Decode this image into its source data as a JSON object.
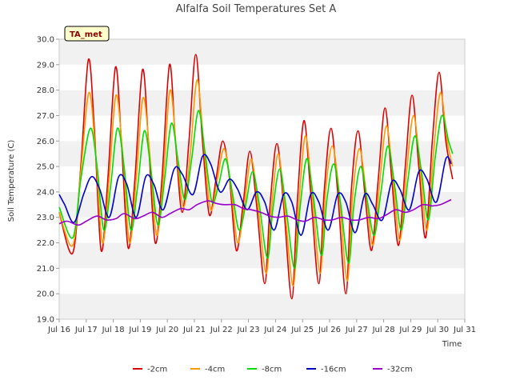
{
  "chart_data": {
    "type": "line",
    "title": "Alfalfa Soil Temperatures Set A",
    "xlabel": "Time",
    "ylabel": "Soil Temperature (C)",
    "ylim": [
      19.0,
      30.0
    ],
    "yticks": [
      "19.0",
      "20.0",
      "21.0",
      "22.0",
      "23.0",
      "24.0",
      "25.0",
      "26.0",
      "27.0",
      "28.0",
      "29.0",
      "30.0"
    ],
    "xlim": [
      16,
      31
    ],
    "xticks": [
      {
        "day": 16,
        "label": "Jul 16"
      },
      {
        "day": 17,
        "label": "Jul 17"
      },
      {
        "day": 18,
        "label": "Jul 18"
      },
      {
        "day": 19,
        "label": "Jul 19"
      },
      {
        "day": 20,
        "label": "Jul 20"
      },
      {
        "day": 21,
        "label": "Jul 21"
      },
      {
        "day": 22,
        "label": "Jul 22"
      },
      {
        "day": 23,
        "label": "Jul 23"
      },
      {
        "day": 24,
        "label": "Jul 24"
      },
      {
        "day": 25,
        "label": "Jul 25"
      },
      {
        "day": 26,
        "label": "Jul 26"
      },
      {
        "day": 27,
        "label": "Jul 27"
      },
      {
        "day": 28,
        "label": "Jul 28"
      },
      {
        "day": 29,
        "label": "Jul 29"
      },
      {
        "day": 30,
        "label": "Jul 30"
      },
      {
        "day": 31,
        "label": "Jul 31"
      }
    ],
    "grid": "horizontal-bands",
    "legend_position": "bottom",
    "badge": "TA_met",
    "series": [
      {
        "name": "-2cm",
        "color": "#dd0000",
        "points": [
          [
            16.0,
            23.2
          ],
          [
            16.5,
            21.6
          ],
          [
            16.8,
            25.0
          ],
          [
            17.08,
            29.2
          ],
          [
            17.3,
            26.5
          ],
          [
            17.55,
            21.7
          ],
          [
            17.8,
            24.5
          ],
          [
            18.08,
            28.9
          ],
          [
            18.3,
            26.0
          ],
          [
            18.55,
            21.8
          ],
          [
            18.8,
            24.5
          ],
          [
            19.08,
            28.8
          ],
          [
            19.3,
            26.0
          ],
          [
            19.55,
            22.0
          ],
          [
            19.8,
            24.5
          ],
          [
            20.08,
            29.0
          ],
          [
            20.3,
            26.0
          ],
          [
            20.55,
            23.2
          ],
          [
            20.8,
            26.0
          ],
          [
            21.05,
            29.4
          ],
          [
            21.3,
            26.0
          ],
          [
            21.55,
            23.1
          ],
          [
            21.8,
            24.5
          ],
          [
            22.05,
            26.0
          ],
          [
            22.3,
            24.5
          ],
          [
            22.55,
            21.7
          ],
          [
            22.8,
            23.5
          ],
          [
            23.05,
            25.6
          ],
          [
            23.3,
            23.5
          ],
          [
            23.6,
            20.4
          ],
          [
            23.8,
            23.5
          ],
          [
            24.05,
            25.9
          ],
          [
            24.3,
            23.5
          ],
          [
            24.6,
            19.8
          ],
          [
            24.8,
            23.5
          ],
          [
            25.05,
            26.8
          ],
          [
            25.3,
            24.0
          ],
          [
            25.6,
            20.4
          ],
          [
            25.8,
            24.0
          ],
          [
            26.05,
            26.5
          ],
          [
            26.3,
            24.0
          ],
          [
            26.6,
            20.0
          ],
          [
            26.8,
            24.0
          ],
          [
            27.05,
            26.4
          ],
          [
            27.3,
            24.0
          ],
          [
            27.55,
            21.7
          ],
          [
            27.8,
            24.5
          ],
          [
            28.05,
            27.3
          ],
          [
            28.3,
            24.5
          ],
          [
            28.55,
            21.9
          ],
          [
            28.8,
            25.0
          ],
          [
            29.05,
            27.8
          ],
          [
            29.3,
            25.0
          ],
          [
            29.55,
            22.2
          ],
          [
            29.8,
            26.0
          ],
          [
            30.05,
            28.7
          ],
          [
            30.3,
            26.0
          ],
          [
            30.55,
            24.5
          ]
        ]
      },
      {
        "name": "-4cm",
        "color": "#ff9900",
        "points": [
          [
            16.0,
            23.2
          ],
          [
            16.5,
            21.9
          ],
          [
            16.8,
            24.8
          ],
          [
            17.1,
            27.9
          ],
          [
            17.35,
            25.5
          ],
          [
            17.6,
            22.0
          ],
          [
            17.85,
            24.5
          ],
          [
            18.1,
            27.8
          ],
          [
            18.35,
            25.5
          ],
          [
            18.6,
            22.0
          ],
          [
            18.85,
            24.5
          ],
          [
            19.1,
            27.7
          ],
          [
            19.35,
            25.5
          ],
          [
            19.6,
            22.3
          ],
          [
            19.85,
            24.5
          ],
          [
            20.1,
            28.0
          ],
          [
            20.35,
            25.5
          ],
          [
            20.6,
            23.4
          ],
          [
            20.85,
            25.5
          ],
          [
            21.1,
            28.4
          ],
          [
            21.35,
            25.8
          ],
          [
            21.6,
            23.3
          ],
          [
            21.85,
            24.5
          ],
          [
            22.1,
            25.7
          ],
          [
            22.35,
            24.2
          ],
          [
            22.6,
            22.0
          ],
          [
            22.85,
            23.5
          ],
          [
            23.1,
            25.3
          ],
          [
            23.35,
            23.5
          ],
          [
            23.65,
            20.8
          ],
          [
            23.85,
            23.3
          ],
          [
            24.1,
            25.5
          ],
          [
            24.35,
            23.3
          ],
          [
            24.65,
            20.3
          ],
          [
            24.85,
            23.3
          ],
          [
            25.1,
            26.2
          ],
          [
            25.35,
            24.0
          ],
          [
            25.65,
            20.8
          ],
          [
            25.85,
            24.0
          ],
          [
            26.1,
            25.8
          ],
          [
            26.35,
            24.0
          ],
          [
            26.65,
            20.5
          ],
          [
            26.85,
            23.8
          ],
          [
            27.1,
            25.7
          ],
          [
            27.35,
            24.0
          ],
          [
            27.6,
            21.9
          ],
          [
            27.85,
            24.3
          ],
          [
            28.1,
            26.6
          ],
          [
            28.35,
            24.5
          ],
          [
            28.6,
            22.1
          ],
          [
            28.85,
            24.8
          ],
          [
            29.1,
            27.0
          ],
          [
            29.35,
            25.0
          ],
          [
            29.6,
            22.5
          ],
          [
            29.85,
            25.6
          ],
          [
            30.1,
            27.9
          ],
          [
            30.35,
            26.0
          ],
          [
            30.55,
            25.0
          ]
        ]
      },
      {
        "name": "-8cm",
        "color": "#00dd00",
        "points": [
          [
            16.0,
            23.4
          ],
          [
            16.5,
            22.2
          ],
          [
            16.8,
            24.5
          ],
          [
            17.15,
            26.5
          ],
          [
            17.4,
            25.0
          ],
          [
            17.65,
            22.5
          ],
          [
            17.9,
            24.2
          ],
          [
            18.15,
            26.5
          ],
          [
            18.4,
            25.0
          ],
          [
            18.65,
            22.5
          ],
          [
            18.9,
            24.2
          ],
          [
            19.15,
            26.4
          ],
          [
            19.4,
            24.8
          ],
          [
            19.65,
            22.7
          ],
          [
            19.9,
            24.5
          ],
          [
            20.15,
            26.7
          ],
          [
            20.4,
            25.2
          ],
          [
            20.65,
            23.7
          ],
          [
            20.9,
            25.3
          ],
          [
            21.15,
            27.2
          ],
          [
            21.4,
            25.5
          ],
          [
            21.65,
            23.6
          ],
          [
            21.9,
            24.3
          ],
          [
            22.15,
            25.3
          ],
          [
            22.4,
            24.0
          ],
          [
            22.65,
            22.5
          ],
          [
            22.9,
            23.5
          ],
          [
            23.15,
            24.8
          ],
          [
            23.4,
            23.5
          ],
          [
            23.7,
            21.4
          ],
          [
            23.9,
            23.3
          ],
          [
            24.15,
            24.9
          ],
          [
            24.4,
            23.3
          ],
          [
            24.7,
            21.0
          ],
          [
            24.9,
            23.3
          ],
          [
            25.15,
            25.3
          ],
          [
            25.4,
            23.8
          ],
          [
            25.7,
            21.5
          ],
          [
            25.9,
            23.7
          ],
          [
            26.15,
            25.1
          ],
          [
            26.4,
            23.6
          ],
          [
            26.7,
            21.2
          ],
          [
            26.9,
            23.5
          ],
          [
            27.15,
            25.0
          ],
          [
            27.4,
            23.6
          ],
          [
            27.65,
            22.3
          ],
          [
            27.9,
            24.0
          ],
          [
            28.15,
            25.8
          ],
          [
            28.4,
            24.3
          ],
          [
            28.65,
            22.5
          ],
          [
            28.9,
            24.5
          ],
          [
            29.15,
            26.2
          ],
          [
            29.4,
            24.8
          ],
          [
            29.65,
            22.9
          ],
          [
            29.9,
            25.3
          ],
          [
            30.15,
            27.0
          ],
          [
            30.4,
            26.0
          ],
          [
            30.55,
            25.5
          ]
        ]
      },
      {
        "name": "-16cm",
        "color": "#0000cc",
        "points": [
          [
            16.0,
            23.9
          ],
          [
            16.2,
            23.5
          ],
          [
            16.55,
            22.8
          ],
          [
            16.9,
            23.9
          ],
          [
            17.2,
            24.6
          ],
          [
            17.5,
            24.1
          ],
          [
            17.85,
            23.0
          ],
          [
            18.2,
            24.6
          ],
          [
            18.5,
            24.3
          ],
          [
            18.85,
            23.0
          ],
          [
            19.2,
            24.6
          ],
          [
            19.5,
            24.3
          ],
          [
            19.85,
            23.3
          ],
          [
            20.25,
            24.9
          ],
          [
            20.55,
            24.7
          ],
          [
            20.95,
            23.9
          ],
          [
            21.3,
            25.4
          ],
          [
            21.6,
            25.1
          ],
          [
            21.95,
            24.0
          ],
          [
            22.3,
            24.5
          ],
          [
            22.6,
            24.1
          ],
          [
            22.95,
            23.3
          ],
          [
            23.3,
            24.0
          ],
          [
            23.6,
            23.6
          ],
          [
            23.95,
            22.5
          ],
          [
            24.3,
            23.9
          ],
          [
            24.6,
            23.6
          ],
          [
            24.95,
            22.3
          ],
          [
            25.3,
            23.9
          ],
          [
            25.6,
            23.6
          ],
          [
            25.95,
            22.5
          ],
          [
            26.3,
            23.9
          ],
          [
            26.6,
            23.6
          ],
          [
            26.95,
            22.4
          ],
          [
            27.3,
            23.9
          ],
          [
            27.6,
            23.5
          ],
          [
            27.95,
            22.9
          ],
          [
            28.3,
            24.4
          ],
          [
            28.6,
            24.1
          ],
          [
            28.95,
            23.3
          ],
          [
            29.3,
            24.8
          ],
          [
            29.6,
            24.5
          ],
          [
            29.95,
            23.6
          ],
          [
            30.3,
            25.3
          ],
          [
            30.5,
            25.1
          ]
        ]
      },
      {
        "name": "-32cm",
        "color": "#9900cc",
        "points": [
          [
            16.0,
            22.75
          ],
          [
            16.3,
            22.85
          ],
          [
            16.7,
            22.7
          ],
          [
            17.0,
            22.85
          ],
          [
            17.4,
            23.05
          ],
          [
            17.75,
            22.9
          ],
          [
            18.1,
            22.95
          ],
          [
            18.4,
            23.15
          ],
          [
            18.8,
            22.95
          ],
          [
            19.1,
            23.05
          ],
          [
            19.45,
            23.2
          ],
          [
            19.8,
            23.0
          ],
          [
            20.1,
            23.15
          ],
          [
            20.5,
            23.35
          ],
          [
            20.8,
            23.3
          ],
          [
            21.1,
            23.5
          ],
          [
            21.5,
            23.65
          ],
          [
            21.8,
            23.55
          ],
          [
            22.1,
            23.5
          ],
          [
            22.5,
            23.5
          ],
          [
            22.8,
            23.35
          ],
          [
            23.1,
            23.3
          ],
          [
            23.45,
            23.2
          ],
          [
            23.8,
            23.05
          ],
          [
            24.1,
            23.0
          ],
          [
            24.45,
            23.05
          ],
          [
            24.8,
            22.9
          ],
          [
            25.1,
            22.85
          ],
          [
            25.45,
            23.0
          ],
          [
            25.8,
            22.9
          ],
          [
            26.1,
            22.9
          ],
          [
            26.45,
            23.0
          ],
          [
            26.8,
            22.9
          ],
          [
            27.1,
            22.9
          ],
          [
            27.45,
            23.0
          ],
          [
            27.8,
            22.95
          ],
          [
            28.1,
            23.1
          ],
          [
            28.45,
            23.3
          ],
          [
            28.8,
            23.2
          ],
          [
            29.1,
            23.3
          ],
          [
            29.45,
            23.5
          ],
          [
            29.8,
            23.45
          ],
          [
            30.1,
            23.5
          ],
          [
            30.5,
            23.7
          ]
        ]
      }
    ]
  }
}
